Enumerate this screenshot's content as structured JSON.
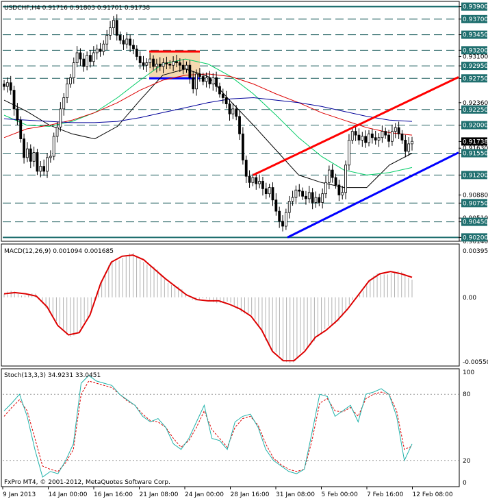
{
  "chart_data": [
    {
      "type": "candlestick",
      "title": "USDCHF,H4  0.91716 0.91803 0.91701 0.91738",
      "ylim": [
        0.9016,
        0.9394
      ],
      "price_labels": [
        "0.93900",
        "0.93700",
        "0.93450",
        "0.93200",
        "0.93100",
        "0.92950",
        "0.92750",
        "0.92360",
        "0.92250",
        "0.92000",
        "0.91738",
        "0.91630",
        "0.91550",
        "0.91200",
        "0.90880",
        "0.90750",
        "0.90510",
        "0.90450",
        "0.90140",
        "0.90200"
      ],
      "dashed_levels": [
        0.937,
        0.9345,
        0.932,
        0.9295,
        0.9275,
        0.9225,
        0.92,
        0.9155,
        0.912,
        0.9075,
        0.9045
      ],
      "solid_levels": [
        0.939,
        0.902
      ],
      "plain_ticks": [
        "0.93100",
        "0.92360",
        "0.91630",
        "0.90880",
        "0.90510",
        "0.90140"
      ],
      "last_price": "0.91738",
      "candles_close": [
        0.9262,
        0.9268,
        0.9256,
        0.9226,
        0.9208,
        0.9178,
        0.9148,
        0.9162,
        0.9142,
        0.9156,
        0.9126,
        0.9134,
        0.9126,
        0.9148,
        0.915,
        0.9182,
        0.9197,
        0.9226,
        0.9244,
        0.9266,
        0.9276,
        0.93,
        0.9316,
        0.9306,
        0.9294,
        0.9312,
        0.9302,
        0.9316,
        0.9322,
        0.9318,
        0.933,
        0.9344,
        0.9356,
        0.9368,
        0.9344,
        0.9336,
        0.933,
        0.9338,
        0.9328,
        0.9322,
        0.931,
        0.93,
        0.9296,
        0.93,
        0.9306,
        0.9294,
        0.9298,
        0.9294,
        0.93,
        0.9298,
        0.9296,
        0.9302,
        0.93,
        0.9296,
        0.929,
        0.9296,
        0.9276,
        0.9258,
        0.9282,
        0.9278,
        0.927,
        0.9276,
        0.9266,
        0.9276,
        0.9262,
        0.925,
        0.9244,
        0.9234,
        0.9218,
        0.9226,
        0.9214,
        0.9186,
        0.9144,
        0.9118,
        0.9108,
        0.9116,
        0.9106,
        0.911,
        0.9098,
        0.909,
        0.91,
        0.908,
        0.9062,
        0.9046,
        0.9038,
        0.906,
        0.9078,
        0.9084,
        0.9096,
        0.9094,
        0.9086,
        0.9082,
        0.9092,
        0.9076,
        0.9084,
        0.9076,
        0.909,
        0.9108,
        0.9128,
        0.9116,
        0.9104,
        0.9088,
        0.9092,
        0.9136,
        0.9176,
        0.919,
        0.9184,
        0.9176,
        0.9182,
        0.9172,
        0.9186,
        0.918,
        0.9176,
        0.918,
        0.919,
        0.9184,
        0.9174,
        0.919,
        0.9196,
        0.9186,
        0.9176,
        0.9158,
        0.917,
        0.9174
      ],
      "moving_averages": [
        {
          "color": "#000000",
          "values": [
            0.924,
            0.9222,
            0.92,
            0.9186,
            0.9178,
            0.9198,
            0.924,
            0.928,
            0.929,
            0.9278,
            0.9238,
            0.92,
            0.916,
            0.912,
            0.9108,
            0.91,
            0.91,
            0.9136,
            0.9155
          ]
        },
        {
          "color": "#00cc66",
          "values": [
            0.9216,
            0.92,
            0.9198,
            0.9206,
            0.922,
            0.9244,
            0.9272,
            0.9298,
            0.9306,
            0.9298,
            0.9278,
            0.925,
            0.9216,
            0.918,
            0.915,
            0.9128,
            0.912,
            0.9124,
            0.9132
          ]
        },
        {
          "color": "#dd0000",
          "values": [
            0.918,
            0.9194,
            0.92,
            0.9208,
            0.922,
            0.9236,
            0.9256,
            0.9272,
            0.928,
            0.9282,
            0.9278,
            0.9266,
            0.925,
            0.9236,
            0.922,
            0.9208,
            0.9196,
            0.9188,
            0.9184
          ]
        },
        {
          "color": "#000099",
          "values": [
            0.921,
            0.9208,
            0.9206,
            0.9204,
            0.9204,
            0.9206,
            0.9212,
            0.922,
            0.9228,
            0.9236,
            0.9242,
            0.9244,
            0.924,
            0.9236,
            0.923,
            0.9222,
            0.9214,
            0.9208,
            0.9206
          ]
        }
      ],
      "trendlines": [
        {
          "color": "#ff0000",
          "from": [
            0.912
          ],
          "to": [
            0.9277
          ]
        },
        {
          "color": "#0000ff",
          "from": [
            0.902
          ],
          "to": [
            0.9156
          ]
        }
      ],
      "annotation_box": {
        "top": 0.9318,
        "bottom": 0.9275,
        "fill": "#f5d9b0"
      }
    },
    {
      "type": "macd",
      "title": "MACD(12,26,9) 0.001094 0.001685",
      "y_labels": [
        "0.003954",
        "0.00",
        "-0.00550"
      ],
      "ylim": [
        -0.0055,
        0.003954
      ],
      "signal": [
        0.0003,
        0.0004,
        0.0003,
        0.0001,
        -0.0008,
        -0.0024,
        -0.0032,
        -0.003,
        -0.0015,
        0.0012,
        0.003,
        0.0035,
        0.0036,
        0.0032,
        0.0024,
        0.0016,
        0.0009,
        0.0002,
        -0.0002,
        -0.0003,
        -0.0003,
        -0.0006,
        -0.001,
        -0.0016,
        -0.0028,
        -0.0046,
        -0.0054,
        -0.0054,
        -0.0046,
        -0.0034,
        -0.0028,
        -0.002,
        -0.001,
        0.0002,
        0.0014,
        0.002,
        0.0022,
        0.002,
        0.0017
      ]
    },
    {
      "type": "stochastic",
      "title": "Stoch(13,3,3) 34.9231 33.0451",
      "y_labels": [
        "100",
        "80",
        "20",
        "0"
      ],
      "ylim": [
        0,
        100
      ],
      "main": [
        65,
        72,
        80,
        60,
        30,
        5,
        10,
        8,
        20,
        35,
        90,
        97,
        92,
        90,
        88,
        80,
        75,
        70,
        60,
        55,
        58,
        50,
        35,
        30,
        40,
        55,
        70,
        40,
        38,
        30,
        55,
        60,
        62,
        50,
        30,
        20,
        15,
        10,
        8,
        12,
        45,
        80,
        78,
        60,
        65,
        70,
        55,
        80,
        82,
        85,
        80,
        60,
        20,
        34.9
      ],
      "signal": [
        60,
        68,
        75,
        65,
        40,
        15,
        12,
        10,
        18,
        30,
        80,
        92,
        90,
        88,
        86,
        80,
        74,
        70,
        62,
        56,
        55,
        50,
        40,
        32,
        38,
        50,
        65,
        48,
        40,
        32,
        50,
        58,
        60,
        52,
        35,
        22,
        16,
        12,
        10,
        12,
        38,
        72,
        76,
        65,
        64,
        68,
        60,
        76,
        80,
        82,
        80,
        65,
        30,
        33.0
      ]
    }
  ],
  "x_labels": [
    "9 Jan 2013",
    "14 Jan 00:00",
    "16 Jan 16:00",
    "21 Jan 08:00",
    "24 Jan 00:00",
    "28 Jan 16:00",
    "31 Jan 08:00",
    "5 Feb 00:00",
    "7 Feb 16:00",
    "12 Feb 08:00"
  ],
  "copyright": "FxPro MT4, © 2001-2012, MetaQuotes Software Corp."
}
